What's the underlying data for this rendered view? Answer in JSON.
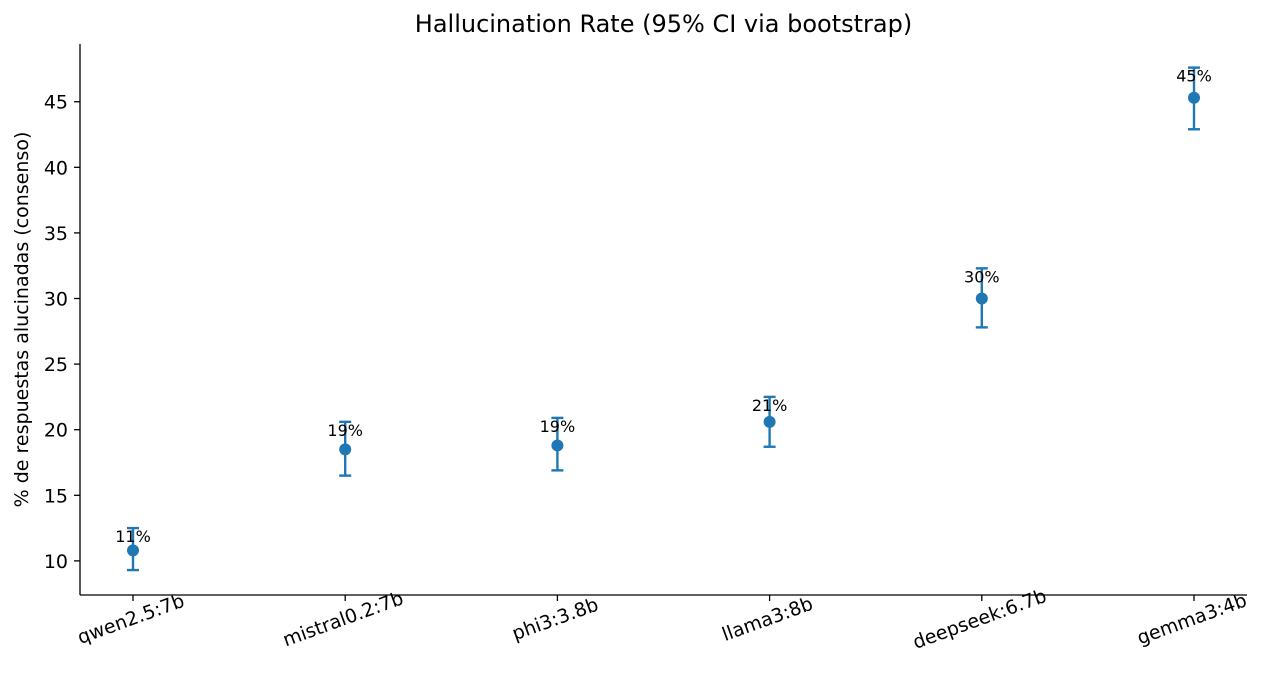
{
  "chart_data": {
    "type": "scatter",
    "title": "Hallucination Rate (95% CI via bootstrap)",
    "xlabel": "",
    "ylabel": "% de respuestas alucinadas (consenso)",
    "categories": [
      "qwen2.5:7b",
      "mistral0.2:7b",
      "phi3:3.8b",
      "llama3:8b",
      "deepseek:6.7b",
      "gemma3:4b"
    ],
    "values": [
      10.8,
      18.5,
      18.8,
      20.6,
      30.0,
      45.3
    ],
    "ci_low": [
      9.3,
      16.5,
      16.9,
      18.7,
      27.8,
      42.9
    ],
    "ci_high": [
      12.5,
      20.6,
      20.9,
      22.5,
      32.3,
      47.6
    ],
    "data_labels": [
      "11%",
      "19%",
      "19%",
      "21%",
      "30%",
      "45%"
    ],
    "ylim": [
      7.4,
      49.4
    ],
    "yticks": [
      10,
      15,
      20,
      25,
      30,
      35,
      40,
      45
    ],
    "grid": false,
    "legend": "none",
    "color": "#1f77b4"
  }
}
